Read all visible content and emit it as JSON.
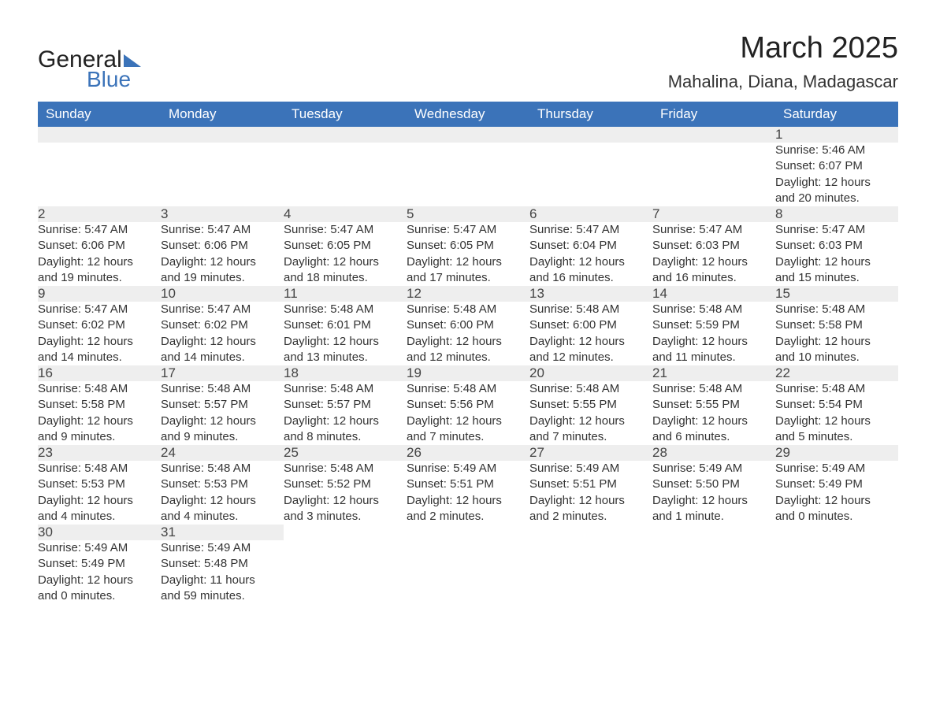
{
  "logo": {
    "text1": "General",
    "text2": "Blue"
  },
  "title": "March 2025",
  "subtitle": "Mahalina, Diana, Madagascar",
  "colors": {
    "header_bg": "#3b73b9",
    "header_text": "#ffffff",
    "daynum_bg": "#eeeeee",
    "row_border": "#3b73b9",
    "body_text": "#333333"
  },
  "day_headers": [
    "Sunday",
    "Monday",
    "Tuesday",
    "Wednesday",
    "Thursday",
    "Friday",
    "Saturday"
  ],
  "weeks": [
    [
      null,
      null,
      null,
      null,
      null,
      null,
      {
        "n": "1",
        "sr": "Sunrise: 5:46 AM",
        "ss": "Sunset: 6:07 PM",
        "d1": "Daylight: 12 hours",
        "d2": "and 20 minutes."
      }
    ],
    [
      {
        "n": "2",
        "sr": "Sunrise: 5:47 AM",
        "ss": "Sunset: 6:06 PM",
        "d1": "Daylight: 12 hours",
        "d2": "and 19 minutes."
      },
      {
        "n": "3",
        "sr": "Sunrise: 5:47 AM",
        "ss": "Sunset: 6:06 PM",
        "d1": "Daylight: 12 hours",
        "d2": "and 19 minutes."
      },
      {
        "n": "4",
        "sr": "Sunrise: 5:47 AM",
        "ss": "Sunset: 6:05 PM",
        "d1": "Daylight: 12 hours",
        "d2": "and 18 minutes."
      },
      {
        "n": "5",
        "sr": "Sunrise: 5:47 AM",
        "ss": "Sunset: 6:05 PM",
        "d1": "Daylight: 12 hours",
        "d2": "and 17 minutes."
      },
      {
        "n": "6",
        "sr": "Sunrise: 5:47 AM",
        "ss": "Sunset: 6:04 PM",
        "d1": "Daylight: 12 hours",
        "d2": "and 16 minutes."
      },
      {
        "n": "7",
        "sr": "Sunrise: 5:47 AM",
        "ss": "Sunset: 6:03 PM",
        "d1": "Daylight: 12 hours",
        "d2": "and 16 minutes."
      },
      {
        "n": "8",
        "sr": "Sunrise: 5:47 AM",
        "ss": "Sunset: 6:03 PM",
        "d1": "Daylight: 12 hours",
        "d2": "and 15 minutes."
      }
    ],
    [
      {
        "n": "9",
        "sr": "Sunrise: 5:47 AM",
        "ss": "Sunset: 6:02 PM",
        "d1": "Daylight: 12 hours",
        "d2": "and 14 minutes."
      },
      {
        "n": "10",
        "sr": "Sunrise: 5:47 AM",
        "ss": "Sunset: 6:02 PM",
        "d1": "Daylight: 12 hours",
        "d2": "and 14 minutes."
      },
      {
        "n": "11",
        "sr": "Sunrise: 5:48 AM",
        "ss": "Sunset: 6:01 PM",
        "d1": "Daylight: 12 hours",
        "d2": "and 13 minutes."
      },
      {
        "n": "12",
        "sr": "Sunrise: 5:48 AM",
        "ss": "Sunset: 6:00 PM",
        "d1": "Daylight: 12 hours",
        "d2": "and 12 minutes."
      },
      {
        "n": "13",
        "sr": "Sunrise: 5:48 AM",
        "ss": "Sunset: 6:00 PM",
        "d1": "Daylight: 12 hours",
        "d2": "and 12 minutes."
      },
      {
        "n": "14",
        "sr": "Sunrise: 5:48 AM",
        "ss": "Sunset: 5:59 PM",
        "d1": "Daylight: 12 hours",
        "d2": "and 11 minutes."
      },
      {
        "n": "15",
        "sr": "Sunrise: 5:48 AM",
        "ss": "Sunset: 5:58 PM",
        "d1": "Daylight: 12 hours",
        "d2": "and 10 minutes."
      }
    ],
    [
      {
        "n": "16",
        "sr": "Sunrise: 5:48 AM",
        "ss": "Sunset: 5:58 PM",
        "d1": "Daylight: 12 hours",
        "d2": "and 9 minutes."
      },
      {
        "n": "17",
        "sr": "Sunrise: 5:48 AM",
        "ss": "Sunset: 5:57 PM",
        "d1": "Daylight: 12 hours",
        "d2": "and 9 minutes."
      },
      {
        "n": "18",
        "sr": "Sunrise: 5:48 AM",
        "ss": "Sunset: 5:57 PM",
        "d1": "Daylight: 12 hours",
        "d2": "and 8 minutes."
      },
      {
        "n": "19",
        "sr": "Sunrise: 5:48 AM",
        "ss": "Sunset: 5:56 PM",
        "d1": "Daylight: 12 hours",
        "d2": "and 7 minutes."
      },
      {
        "n": "20",
        "sr": "Sunrise: 5:48 AM",
        "ss": "Sunset: 5:55 PM",
        "d1": "Daylight: 12 hours",
        "d2": "and 7 minutes."
      },
      {
        "n": "21",
        "sr": "Sunrise: 5:48 AM",
        "ss": "Sunset: 5:55 PM",
        "d1": "Daylight: 12 hours",
        "d2": "and 6 minutes."
      },
      {
        "n": "22",
        "sr": "Sunrise: 5:48 AM",
        "ss": "Sunset: 5:54 PM",
        "d1": "Daylight: 12 hours",
        "d2": "and 5 minutes."
      }
    ],
    [
      {
        "n": "23",
        "sr": "Sunrise: 5:48 AM",
        "ss": "Sunset: 5:53 PM",
        "d1": "Daylight: 12 hours",
        "d2": "and 4 minutes."
      },
      {
        "n": "24",
        "sr": "Sunrise: 5:48 AM",
        "ss": "Sunset: 5:53 PM",
        "d1": "Daylight: 12 hours",
        "d2": "and 4 minutes."
      },
      {
        "n": "25",
        "sr": "Sunrise: 5:48 AM",
        "ss": "Sunset: 5:52 PM",
        "d1": "Daylight: 12 hours",
        "d2": "and 3 minutes."
      },
      {
        "n": "26",
        "sr": "Sunrise: 5:49 AM",
        "ss": "Sunset: 5:51 PM",
        "d1": "Daylight: 12 hours",
        "d2": "and 2 minutes."
      },
      {
        "n": "27",
        "sr": "Sunrise: 5:49 AM",
        "ss": "Sunset: 5:51 PM",
        "d1": "Daylight: 12 hours",
        "d2": "and 2 minutes."
      },
      {
        "n": "28",
        "sr": "Sunrise: 5:49 AM",
        "ss": "Sunset: 5:50 PM",
        "d1": "Daylight: 12 hours",
        "d2": "and 1 minute."
      },
      {
        "n": "29",
        "sr": "Sunrise: 5:49 AM",
        "ss": "Sunset: 5:49 PM",
        "d1": "Daylight: 12 hours",
        "d2": "and 0 minutes."
      }
    ],
    [
      {
        "n": "30",
        "sr": "Sunrise: 5:49 AM",
        "ss": "Sunset: 5:49 PM",
        "d1": "Daylight: 12 hours",
        "d2": "and 0 minutes."
      },
      {
        "n": "31",
        "sr": "Sunrise: 5:49 AM",
        "ss": "Sunset: 5:48 PM",
        "d1": "Daylight: 11 hours",
        "d2": "and 59 minutes."
      },
      null,
      null,
      null,
      null,
      null
    ]
  ]
}
